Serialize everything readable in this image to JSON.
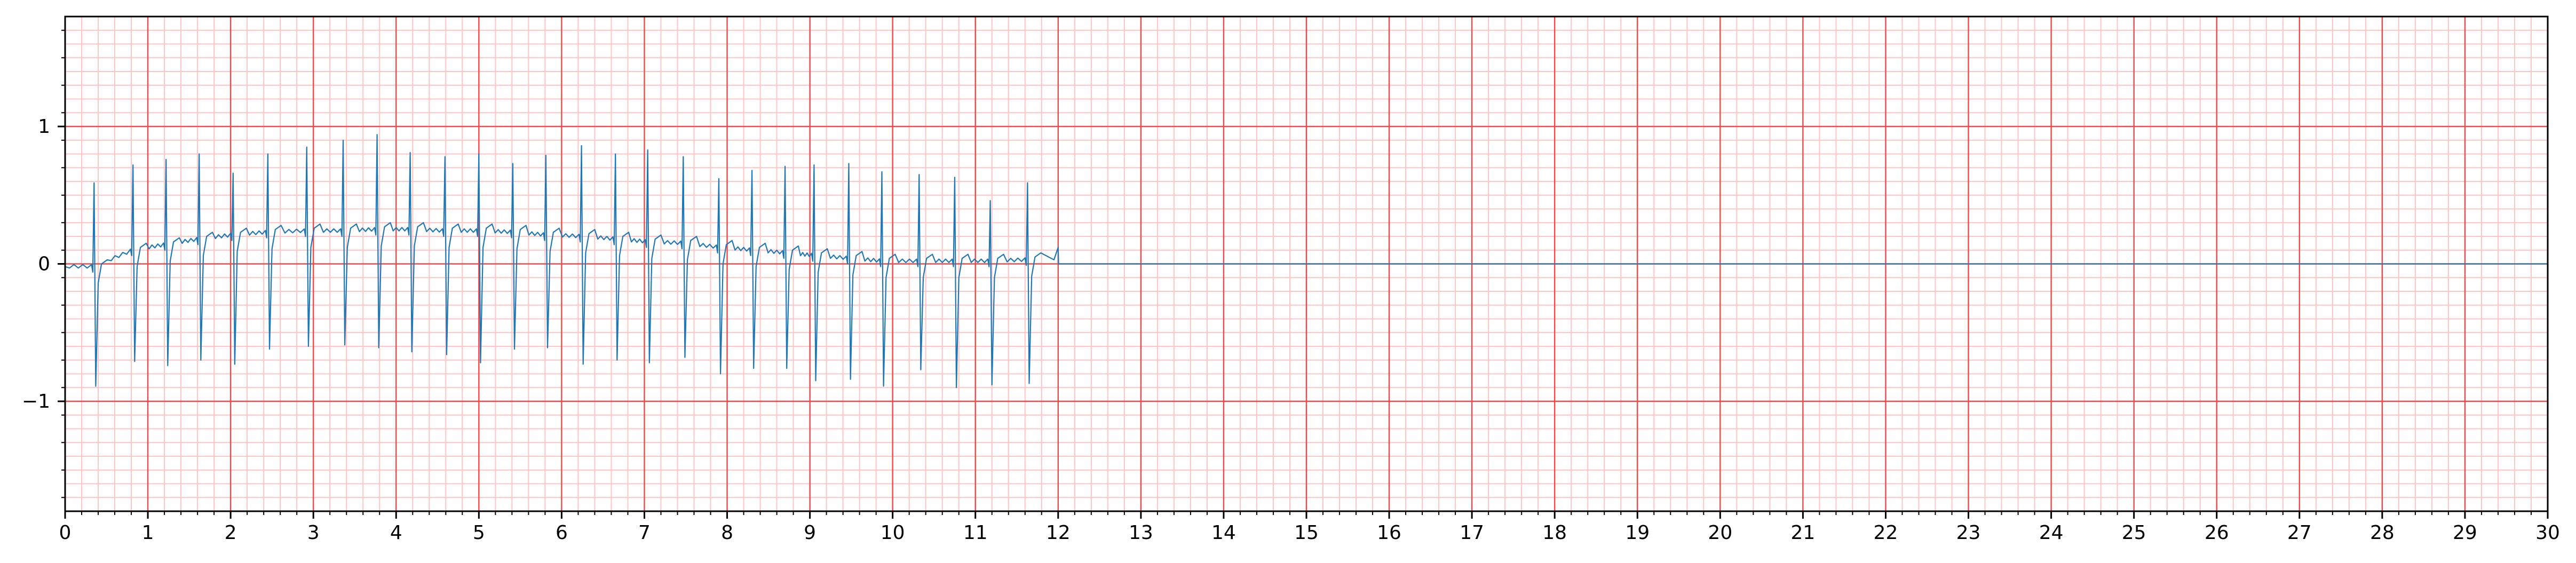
{
  "chart_data": {
    "type": "line",
    "title": "",
    "xlabel": "",
    "ylabel": "",
    "xlim": [
      0,
      30
    ],
    "ylim": [
      -1.8,
      1.8
    ],
    "x_ticks": [
      0,
      1,
      2,
      3,
      4,
      5,
      6,
      7,
      8,
      9,
      10,
      11,
      12,
      13,
      14,
      15,
      16,
      17,
      18,
      19,
      20,
      21,
      22,
      23,
      24,
      25,
      26,
      27,
      28,
      29,
      30
    ],
    "x_tick_labels": [
      "0",
      "1",
      "2",
      "3",
      "4",
      "5",
      "6",
      "7",
      "8",
      "9",
      "10",
      "11",
      "12",
      "13",
      "14",
      "15",
      "16",
      "17",
      "18",
      "19",
      "20",
      "21",
      "22",
      "23",
      "24",
      "25",
      "26",
      "27",
      "28",
      "29",
      "30"
    ],
    "y_ticks": [
      -1,
      0,
      1
    ],
    "y_tick_labels": [
      "−1",
      "0",
      "1"
    ],
    "grid": {
      "major": true,
      "minor": true,
      "major_x_step": 1,
      "minor_x_step": 0.2,
      "major_y_step": 1,
      "minor_y_step": 0.1,
      "major_color": "#f24a4a",
      "minor_color": "#ffc4c4"
    },
    "series": [
      {
        "color": "#1f77b4",
        "signal_end_x": 12.0,
        "flat_value_after_end": 0.0,
        "beats": [
          {
            "t": 0.35,
            "r": 0.59,
            "s": -0.89,
            "baseline": -0.02
          },
          {
            "t": 0.82,
            "r": 0.72,
            "s": -0.71,
            "baseline": 0.1
          },
          {
            "t": 1.22,
            "r": 0.76,
            "s": -0.74,
            "baseline": 0.14
          },
          {
            "t": 1.62,
            "r": 0.8,
            "s": -0.7,
            "baseline": 0.18
          },
          {
            "t": 2.03,
            "r": 0.66,
            "s": -0.73,
            "baseline": 0.21
          },
          {
            "t": 2.45,
            "r": 0.8,
            "s": -0.62,
            "baseline": 0.23
          },
          {
            "t": 2.92,
            "r": 0.85,
            "s": -0.6,
            "baseline": 0.24
          },
          {
            "t": 3.36,
            "r": 0.9,
            "s": -0.59,
            "baseline": 0.24
          },
          {
            "t": 3.77,
            "r": 0.94,
            "s": -0.61,
            "baseline": 0.25
          },
          {
            "t": 4.17,
            "r": 0.81,
            "s": -0.64,
            "baseline": 0.25
          },
          {
            "t": 4.59,
            "r": 0.78,
            "s": -0.66,
            "baseline": 0.24
          },
          {
            "t": 5.0,
            "r": 0.8,
            "s": -0.72,
            "baseline": 0.24
          },
          {
            "t": 5.41,
            "r": 0.73,
            "s": -0.62,
            "baseline": 0.23
          },
          {
            "t": 5.81,
            "r": 0.79,
            "s": -0.61,
            "baseline": 0.21
          },
          {
            "t": 6.24,
            "r": 0.86,
            "s": -0.73,
            "baseline": 0.2
          },
          {
            "t": 6.65,
            "r": 0.8,
            "s": -0.7,
            "baseline": 0.18
          },
          {
            "t": 7.04,
            "r": 0.83,
            "s": -0.72,
            "baseline": 0.16
          },
          {
            "t": 7.47,
            "r": 0.78,
            "s": -0.68,
            "baseline": 0.15
          },
          {
            "t": 7.9,
            "r": 0.62,
            "s": -0.8,
            "baseline": 0.12
          },
          {
            "t": 8.3,
            "r": 0.68,
            "s": -0.76,
            "baseline": 0.1
          },
          {
            "t": 8.7,
            "r": 0.71,
            "s": -0.76,
            "baseline": 0.08
          },
          {
            "t": 9.05,
            "r": 0.72,
            "s": -0.85,
            "baseline": 0.06
          },
          {
            "t": 9.47,
            "r": 0.73,
            "s": -0.84,
            "baseline": 0.04
          },
          {
            "t": 9.87,
            "r": 0.67,
            "s": -0.89,
            "baseline": 0.02
          },
          {
            "t": 10.32,
            "r": 0.65,
            "s": -0.77,
            "baseline": 0.02
          },
          {
            "t": 10.75,
            "r": 0.63,
            "s": -0.9,
            "baseline": 0.02
          },
          {
            "t": 11.18,
            "r": 0.46,
            "s": -0.88,
            "baseline": 0.02
          },
          {
            "t": 11.63,
            "r": 0.59,
            "s": -0.87,
            "baseline": 0.03
          }
        ]
      }
    ]
  }
}
